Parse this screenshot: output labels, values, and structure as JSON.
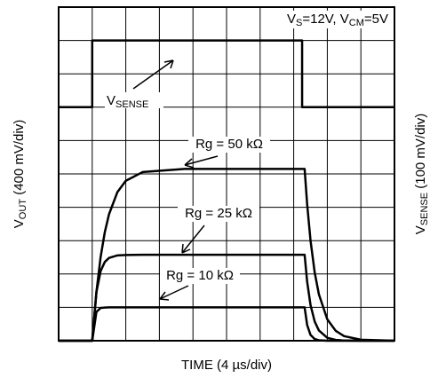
{
  "chart_data": {
    "type": "line",
    "x_label": "TIME (4 µs/div)",
    "y_label": [
      "V",
      "OUT",
      " (400 mV/div)"
    ],
    "y2_label": [
      "V",
      "SENSE",
      " (100 mV/div)"
    ],
    "conditions": [
      "V",
      "S",
      "=12V, V",
      "CM",
      "=5V"
    ],
    "xlim": [
      0,
      40
    ],
    "xticks": [
      0,
      4,
      8,
      12,
      16,
      20,
      24,
      28,
      32,
      36,
      40
    ],
    "ylim": [
      0,
      4000
    ],
    "yticks": [
      0,
      400,
      800,
      1200,
      1600,
      2000,
      2400,
      2800,
      3200,
      3600,
      4000
    ],
    "y2lim": [
      0,
      1000
    ],
    "grid": true,
    "series": [
      {
        "name": [
          "V",
          "SENSE"
        ],
        "color": "#000000",
        "axis": "y2",
        "x": [
          0,
          4,
          4,
          29,
          29,
          40
        ],
        "values": [
          700,
          700,
          900,
          900,
          700,
          700
        ]
      },
      {
        "name": "Rg = 50 kΩ",
        "color": "#000000",
        "x": [
          0,
          4,
          4.5,
          5,
          5.5,
          6,
          7,
          8,
          10,
          15,
          20,
          25,
          29.3,
          29.6,
          30,
          30.5,
          31,
          32,
          33,
          34,
          36,
          40
        ],
        "values": [
          0,
          0,
          583,
          1003,
          1302,
          1516,
          1782,
          1918,
          2022,
          2060,
          2060,
          2060,
          2060,
          1636,
          1203,
          818,
          556,
          257,
          119,
          55,
          12,
          0
        ]
      },
      {
        "name": "Rg = 25 kΩ",
        "color": "#000000",
        "x": [
          0,
          4,
          4.5,
          5,
          5.5,
          6,
          7,
          8,
          10,
          15,
          20,
          25,
          29.3,
          29.6,
          30,
          30.5,
          31,
          32,
          33,
          34,
          36,
          40
        ],
        "values": [
          0,
          0,
          582,
          835,
          945,
          993,
          1023,
          1028,
          1030,
          1030,
          1030,
          1030,
          1030,
          708,
          429,
          230,
          123,
          35,
          10,
          2,
          0,
          0
        ]
      },
      {
        "name": "Rg = 10 kΩ",
        "color": "#000000",
        "x": [
          0,
          4,
          4.5,
          5,
          5.5,
          6,
          7,
          8,
          10,
          15,
          20,
          25,
          29.3,
          29.6,
          30,
          30.5,
          31,
          32,
          33,
          34,
          36,
          40
        ],
        "values": [
          0,
          0,
          346,
          393,
          398,
          400,
          400,
          400,
          400,
          400,
          400,
          400,
          400,
          189,
          70,
          20,
          6,
          0,
          0,
          0,
          0,
          0
        ]
      }
    ]
  }
}
